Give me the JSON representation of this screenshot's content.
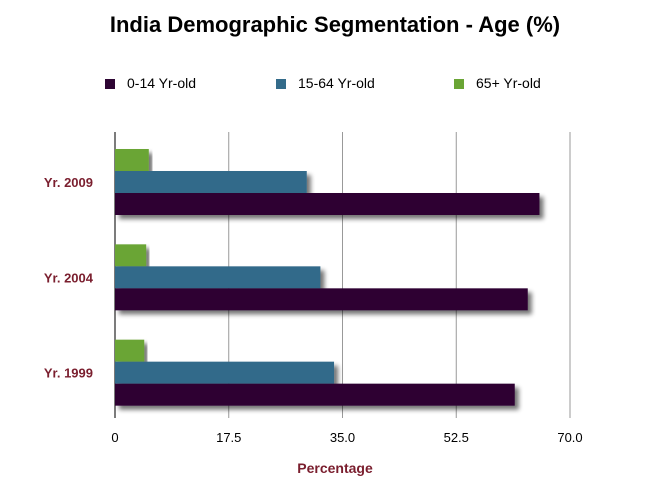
{
  "chart_data": {
    "type": "bar",
    "orientation": "horizontal",
    "title": "India Demographic Segmentation - Age (%)",
    "xlabel": "Percentage",
    "ylabel": "",
    "xlim": [
      0,
      70
    ],
    "x_ticks": [
      "0",
      "17.5",
      "35.0",
      "52.5",
      "70.0"
    ],
    "grid": "vertical",
    "legend_position": "top",
    "categories": [
      "Yr. 2009",
      "Yr. 2004",
      "Yr. 1999"
    ],
    "series": [
      {
        "name": "0-14 Yr-old",
        "color": "#2e0533",
        "values": [
          65.3,
          63.5,
          61.5
        ]
      },
      {
        "name": "15-64 Yr-old",
        "color": "#336b8a",
        "values": [
          29.5,
          31.6,
          33.7
        ]
      },
      {
        "name": "65+ Yr-old",
        "color": "#6aa535",
        "values": [
          5.2,
          4.8,
          4.5
        ]
      }
    ]
  }
}
